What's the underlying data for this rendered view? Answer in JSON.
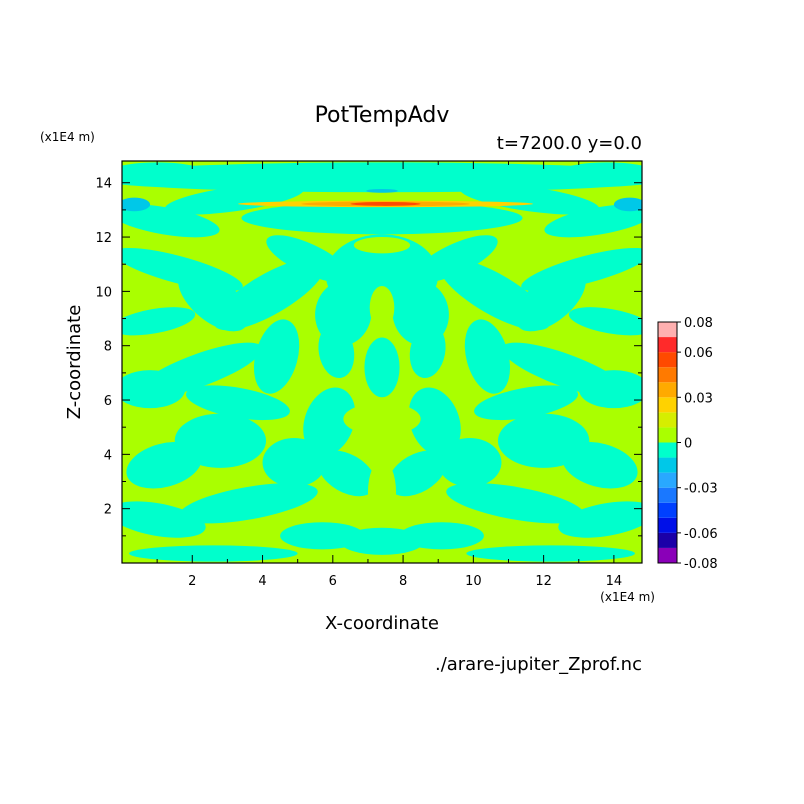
{
  "chart_data": {
    "type": "heatmap",
    "title": "PotTempAdv",
    "subtitle": "t=7200.0 y=0.0",
    "xlabel": "X-coordinate",
    "ylabel": "Z-coordinate",
    "x_unit": "(x1E4 m)",
    "z_unit": "(x1E4 m)",
    "xlim": [
      0,
      14.8
    ],
    "ylim": [
      0,
      14.8
    ],
    "x_ticks": [
      2,
      4,
      6,
      8,
      10,
      12,
      14
    ],
    "y_ticks": [
      2,
      4,
      6,
      8,
      10,
      12,
      14
    ],
    "file_label": "./arare-jupiter_Zprof.nc",
    "colorbar": {
      "tick_labels": [
        "0.08",
        "0.06",
        "0.03",
        "0",
        "-0.03",
        "-0.06",
        "-0.08"
      ],
      "tick_values": [
        0.08,
        0.06,
        0.03,
        0,
        -0.03,
        -0.06,
        -0.08
      ],
      "range": [
        -0.08,
        0.08
      ],
      "levels": [
        -0.08,
        -0.07,
        -0.06,
        -0.05,
        -0.04,
        -0.03,
        -0.02,
        -0.01,
        0,
        0.01,
        0.02,
        0.03,
        0.04,
        0.05,
        0.06,
        0.07,
        0.08
      ],
      "colors": [
        "#8a00b8",
        "#1b00a8",
        "#0010e8",
        "#0040ff",
        "#1a78ff",
        "#29a8ff",
        "#00c8e8",
        "#00ffcc",
        "#aaff00",
        "#d6ee00",
        "#ffd200",
        "#ffaa00",
        "#ff7a00",
        "#ff4a00",
        "#ff2a2a",
        "#ffb0b0"
      ]
    },
    "field_summary": {
      "background_class": "0 to 0.01",
      "main_class": "-0.01 to 0",
      "max_anomaly_location": [
        7.5,
        13.2
      ],
      "max_anomaly_value": 0.04
    }
  }
}
